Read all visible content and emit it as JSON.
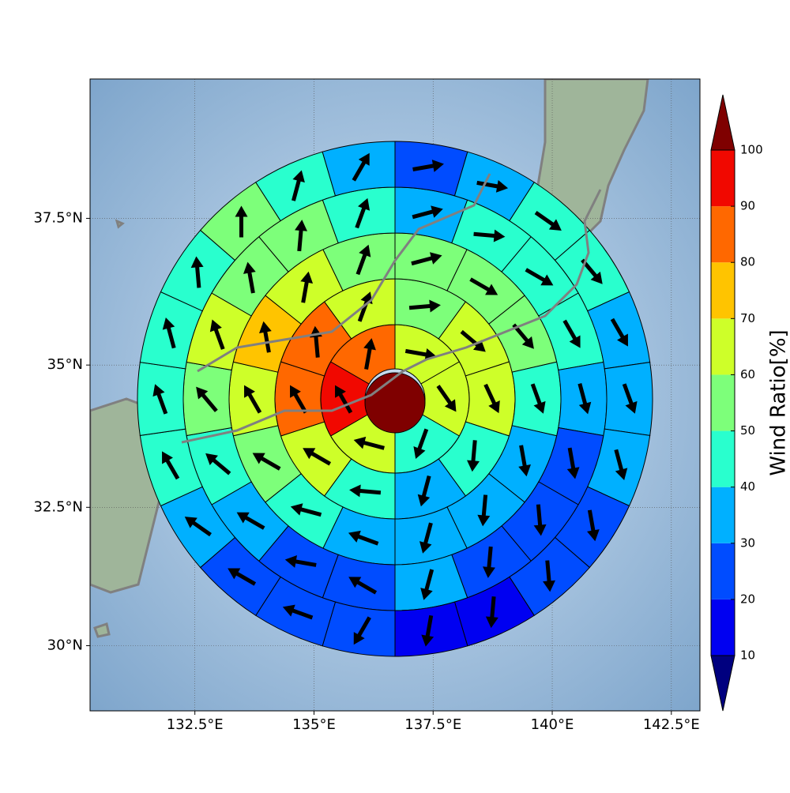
{
  "chart_data": {
    "type": "polar_grid_map",
    "xlim": [
      130.3,
      143.1
    ],
    "ylim": [
      28.8,
      39.8
    ],
    "xticks": [
      {
        "value": 132.5,
        "label": "132.5°E"
      },
      {
        "value": 135,
        "label": "135°E"
      },
      {
        "value": 137.5,
        "label": "137.5°E"
      },
      {
        "value": 140,
        "label": "140°E"
      },
      {
        "value": 142.5,
        "label": "142.5°E"
      }
    ],
    "yticks": [
      {
        "value": 30,
        "label": "30°N"
      },
      {
        "value": 32.5,
        "label": "32.5°N"
      },
      {
        "value": 35,
        "label": "35°N"
      },
      {
        "value": 37.5,
        "label": "37.5°N"
      }
    ],
    "grid": true,
    "projection": "mercator",
    "center": 105,
    "rings": [
      {
        "values": [
          65,
          62,
          45,
          63,
          92,
          85
        ],
        "directions": [
          100,
          145,
          200,
          285,
          330,
          10
        ]
      },
      {
        "values": [
          55,
          65,
          62,
          45,
          35,
          45,
          62,
          80,
          82,
          65
        ],
        "directions": [
          85,
          130,
          155,
          185,
          195,
          275,
          300,
          330,
          355,
          20
        ]
      },
      {
        "values": [
          55,
          55,
          52,
          45,
          35,
          32,
          35,
          35,
          42,
          55,
          65,
          72,
          65,
          55
        ],
        "directions": [
          75,
          120,
          140,
          160,
          170,
          185,
          195,
          290,
          285,
          300,
          330,
          350,
          10,
          20
        ]
      },
      {
        "values": [
          35,
          42,
          45,
          45,
          35,
          25,
          28,
          28,
          32,
          25,
          25,
          35,
          45,
          55,
          62,
          55,
          52,
          45
        ],
        "directions": [
          75,
          95,
          120,
          150,
          165,
          170,
          175,
          185,
          195,
          300,
          280,
          300,
          310,
          320,
          340,
          350,
          5,
          20
        ]
      },
      {
        "values": [
          22,
          33,
          42,
          42,
          35,
          35,
          33,
          25,
          25,
          18,
          15,
          25,
          25,
          22,
          32,
          42,
          45,
          45,
          42,
          55,
          45,
          35
        ],
        "directions": [
          80,
          100,
          125,
          140,
          150,
          160,
          165,
          170,
          175,
          185,
          190,
          210,
          290,
          300,
          305,
          330,
          340,
          345,
          355,
          0,
          15,
          30
        ]
      }
    ],
    "colorbar": {
      "label": "Wind Ratio[%]",
      "ticks": [
        10,
        20,
        30,
        40,
        50,
        60,
        70,
        80,
        90,
        100
      ],
      "colors": [
        "#00007f",
        "#0000f1",
        "#004cff",
        "#00b0ff",
        "#29ffce",
        "#7dff7a",
        "#ceff29",
        "#ffc400",
        "#ff6800",
        "#f10800",
        "#7f0000"
      ]
    }
  }
}
